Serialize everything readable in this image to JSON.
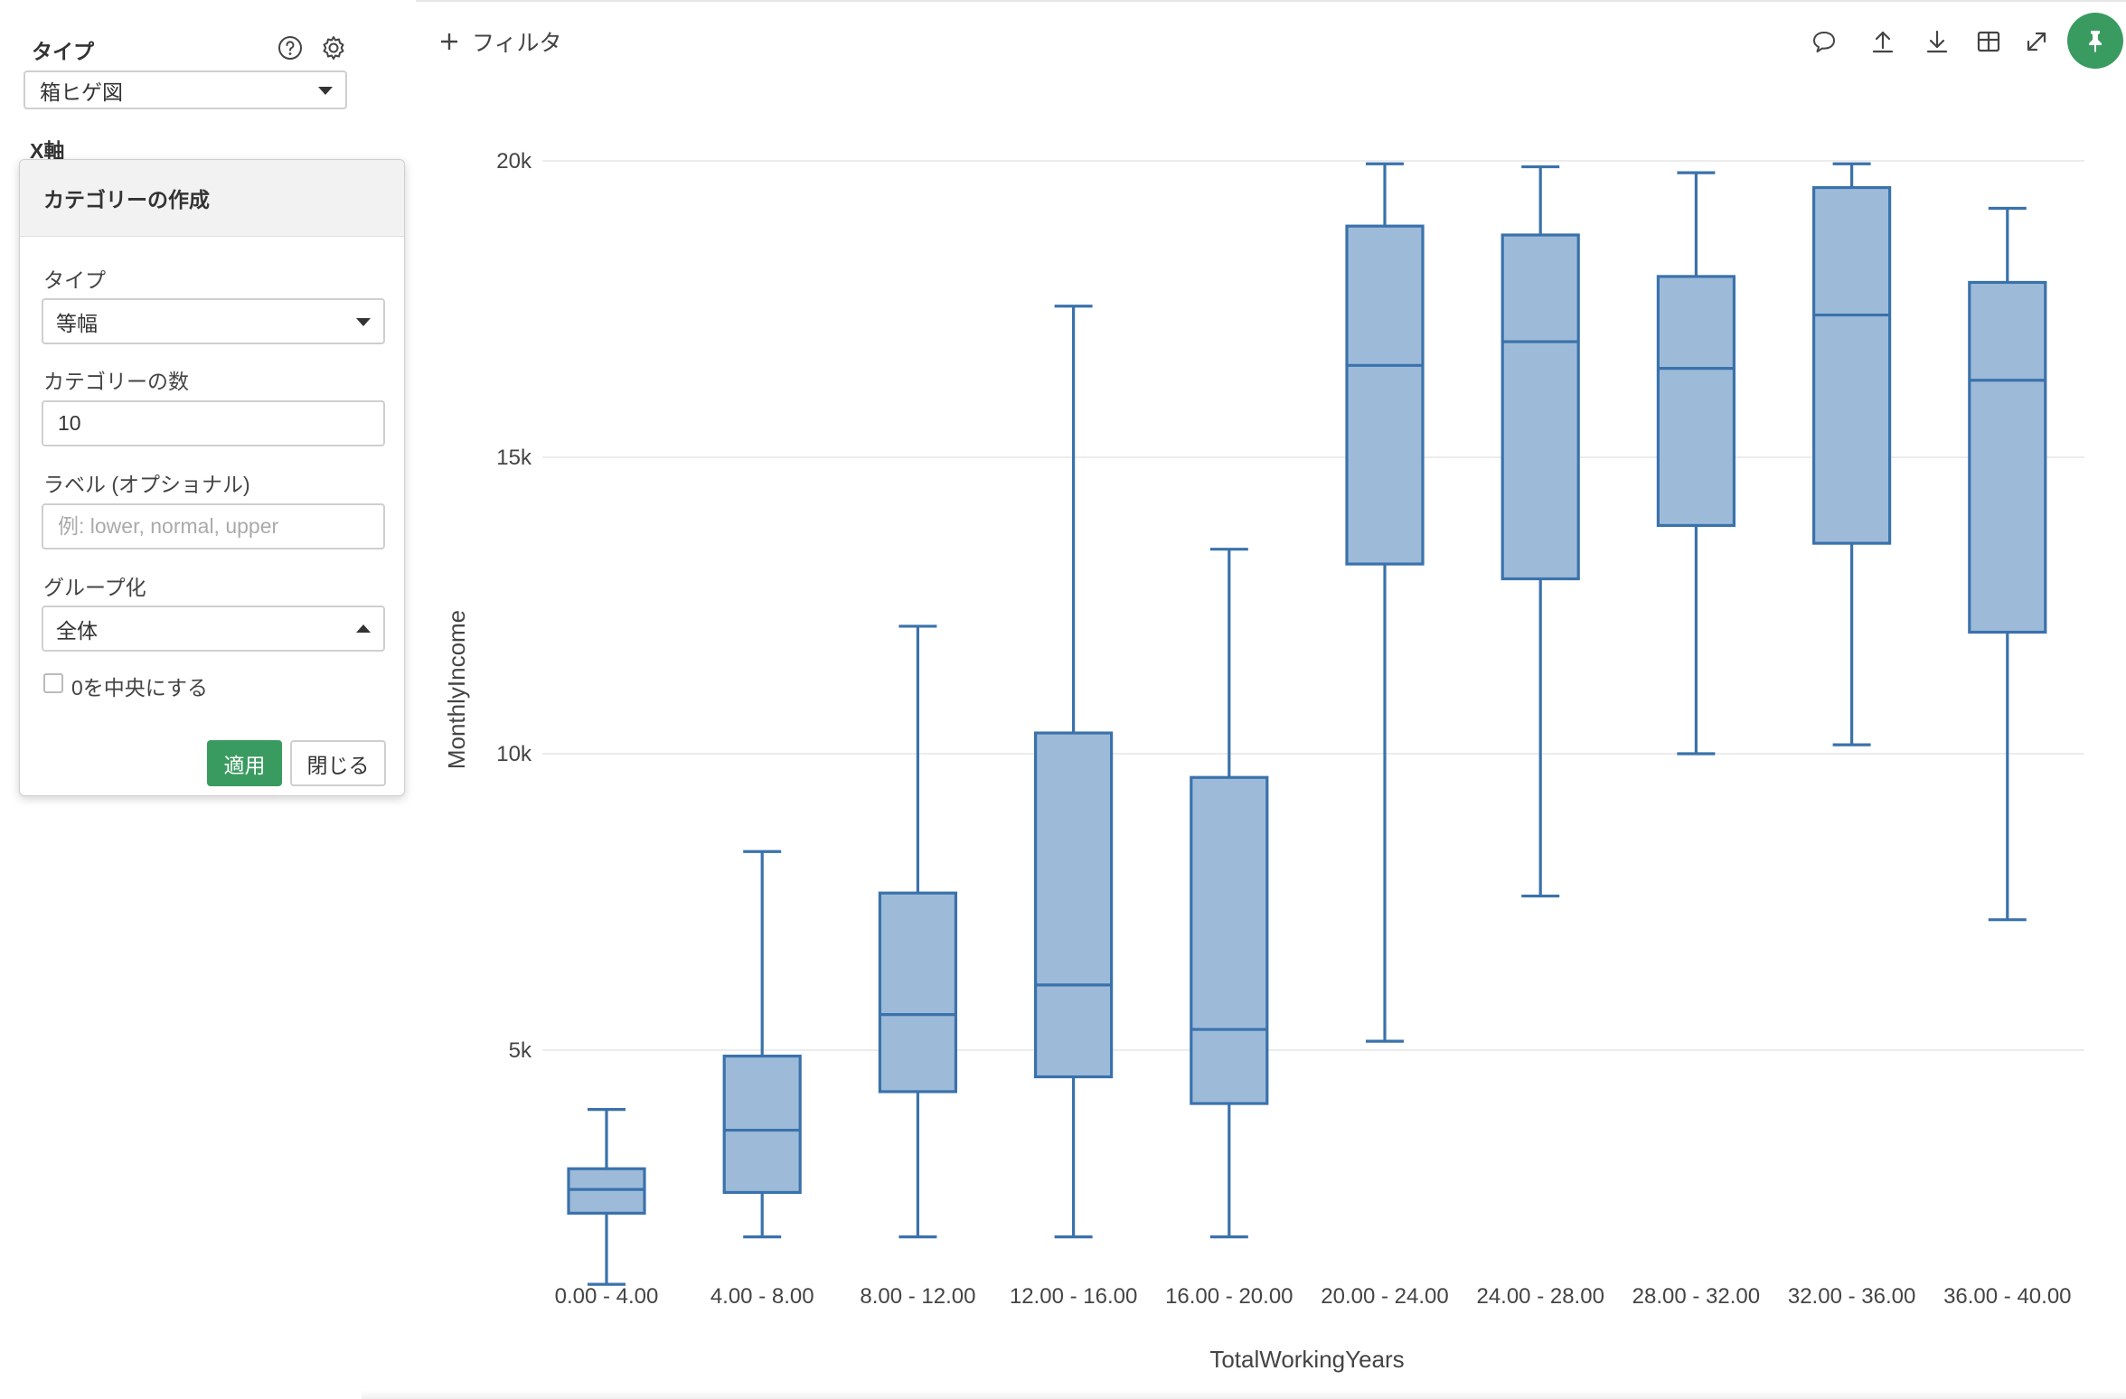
{
  "sidebar": {
    "type_label": "タイプ",
    "type_value": "箱ヒゲ図",
    "xaxis_label": "X軸",
    "icons": [
      "help-icon",
      "gear-icon"
    ]
  },
  "popover": {
    "title": "カテゴリーの作成",
    "type_label": "タイプ",
    "type_value": "等幅",
    "count_label": "カテゴリーの数",
    "count_value": "10",
    "label_label": "ラベル (オプショナル)",
    "label_placeholder": "例: lower, normal, upper",
    "group_label": "グループ化",
    "group_value": "全体",
    "center_zero_label": "0を中央にする",
    "center_zero_checked": false,
    "apply_label": "適用",
    "close_label": "閉じる",
    "apply_color": "#3a9b60"
  },
  "toolbar": {
    "filter_label": "フィルタ",
    "icons": [
      "comment-icon",
      "upload-icon",
      "download-icon",
      "table-icon",
      "expand-icon",
      "pin-icon"
    ],
    "pin_color": "#3a9b60"
  },
  "chart_data": {
    "type": "box",
    "xlabel": "TotalWorkingYears",
    "ylabel": "MonthlyIncome",
    "ylim": [
      0,
      20000
    ],
    "yticks": [
      5000,
      10000,
      15000,
      20000
    ],
    "ytick_labels": [
      "5k",
      "10k",
      "15k",
      "20k"
    ],
    "grid": true,
    "box_fill": "#9dbbd9",
    "box_stroke": "#3a72ab",
    "categories": [
      "0.00 - 4.00",
      "4.00 - 8.00",
      "8.00 - 12.00",
      "12.00 - 16.00",
      "16.00 - 20.00",
      "20.00 - 24.00",
      "24.00 - 28.00",
      "28.00 - 32.00",
      "32.00 - 36.00",
      "36.00 - 40.00"
    ],
    "boxes": [
      {
        "min": 1050,
        "q1": 2250,
        "median": 2650,
        "q3": 3000,
        "max": 4000
      },
      {
        "min": 1850,
        "q1": 2600,
        "median": 3650,
        "q3": 4900,
        "max": 8350
      },
      {
        "min": 1850,
        "q1": 4300,
        "median": 5600,
        "q3": 7650,
        "max": 12150
      },
      {
        "min": 1850,
        "q1": 4550,
        "median": 6100,
        "q3": 10350,
        "max": 17550
      },
      {
        "min": 1850,
        "q1": 4100,
        "median": 5350,
        "q3": 9600,
        "max": 13450
      },
      {
        "min": 5150,
        "q1": 13200,
        "median": 16550,
        "q3": 18900,
        "max": 19950
      },
      {
        "min": 7600,
        "q1": 12950,
        "median": 16950,
        "q3": 18750,
        "max": 19900
      },
      {
        "min": 10000,
        "q1": 13850,
        "median": 16500,
        "q3": 18050,
        "max": 19800
      },
      {
        "min": 10150,
        "q1": 13550,
        "median": 17400,
        "q3": 19550,
        "max": 19950
      },
      {
        "min": 7200,
        "q1": 12050,
        "median": 16300,
        "q3": 17950,
        "max": 19200
      }
    ]
  }
}
